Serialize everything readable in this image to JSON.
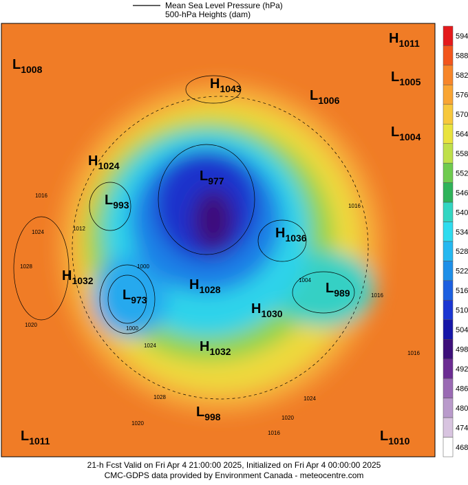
{
  "header": {
    "legend": [
      "Mean Sea Level Pressure (hPa)",
      "500-hPa Heights (dam)"
    ]
  },
  "centers": [
    {
      "kind": "L",
      "value": "1008"
    },
    {
      "kind": "H",
      "value": "1043"
    },
    {
      "kind": "L",
      "value": "1006"
    },
    {
      "kind": "H",
      "value": "1011"
    },
    {
      "kind": "L",
      "value": "1005"
    },
    {
      "kind": "L",
      "value": "1004"
    },
    {
      "kind": "H",
      "value": "1024"
    },
    {
      "kind": "L",
      "value": "977"
    },
    {
      "kind": "L",
      "value": "993"
    },
    {
      "kind": "H",
      "value": "1036"
    },
    {
      "kind": "H",
      "value": "1032"
    },
    {
      "kind": "L",
      "value": "973"
    },
    {
      "kind": "H",
      "value": "1028"
    },
    {
      "kind": "H",
      "value": "1030"
    },
    {
      "kind": "L",
      "value": "989"
    },
    {
      "kind": "H",
      "value": "1032"
    },
    {
      "kind": "L",
      "value": "998"
    },
    {
      "kind": "L",
      "value": "1011"
    },
    {
      "kind": "L",
      "value": "1010"
    }
  ],
  "isobar_labels": [
    "1016",
    "1012",
    "1024",
    "1028",
    "1020",
    "1000",
    "1000",
    "1024",
    "1028",
    "1020",
    "1016",
    "1004",
    "1016",
    "1016",
    "1024",
    "1020",
    "1016"
  ],
  "colorbar": {
    "levels": [
      "594",
      "588",
      "582",
      "576",
      "570",
      "564",
      "558",
      "552",
      "546",
      "540",
      "534",
      "528",
      "522",
      "516",
      "510",
      "504",
      "498",
      "492",
      "486",
      "480",
      "474",
      "468"
    ],
    "colors": [
      "#e41a1c",
      "#f2561d",
      "#f7862a",
      "#f9a533",
      "#f7c83c",
      "#e9e33e",
      "#bfe04a",
      "#6fcb4f",
      "#2fb35a",
      "#33d6c2",
      "#2fdcef",
      "#25b8f0",
      "#1e8fe8",
      "#1c5fe0",
      "#1a35d2",
      "#1616a8",
      "#3d0f7a",
      "#6b2c92",
      "#9a6ab4",
      "#b99acb",
      "#d8c4e0",
      "#ffffff"
    ]
  },
  "footer": [
    "21-h Fcst Valid on Fri Apr  4 21:00:00 2025, Initialized on Fri Apr  4 00:00:00 2025",
    "CMC-GDPS data provided by Environment Canada - meteocentre.com"
  ]
}
